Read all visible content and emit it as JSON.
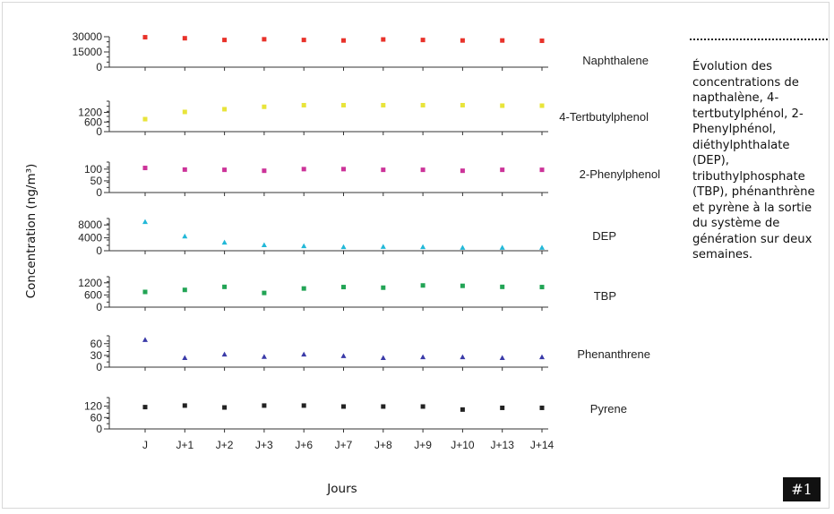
{
  "caption": "Évolution des concentrations de napthalène, 4-tertbutylphénol, 2-Phenylphénol, diéthylphthalate (DEP), tributhylphosphate (TBP), phénanthrène et pyrène à la sortie du système de génération sur deux semaines.",
  "badge": "#1",
  "chart_data": {
    "type": "scatter",
    "xlabel": "Jours",
    "ylabel": "Concentration (ng/m³)",
    "categories": [
      "J",
      "J+1",
      "J+2",
      "J+3",
      "J+6",
      "J+7",
      "J+8",
      "J+9",
      "J+10",
      "J+13",
      "J+14"
    ],
    "grid": false,
    "panels": [
      {
        "name": "Naphthalene",
        "color": "#e8322a",
        "marker": "square",
        "ylim": [
          0,
          30000
        ],
        "ticks": [
          "0",
          "15000",
          "30000"
        ],
        "values": [
          29500,
          28500,
          26800,
          27500,
          26800,
          26300,
          27300,
          26800,
          26300,
          26300,
          26000
        ]
      },
      {
        "name": "4-Tertbutylphenol",
        "color": "#e8e43a",
        "marker": "square",
        "ylim": [
          0,
          1900
        ],
        "ticks": [
          "0",
          "600",
          "1200"
        ],
        "values": [
          780,
          1230,
          1400,
          1550,
          1650,
          1650,
          1650,
          1650,
          1650,
          1620,
          1620
        ]
      },
      {
        "name": "2-Phenylphenol",
        "color": "#cc3399",
        "marker": "square",
        "ylim": [
          0,
          130
        ],
        "ticks": [
          "0",
          "50",
          "100"
        ],
        "values": [
          105,
          98,
          97,
          93,
          100,
          100,
          97,
          97,
          93,
          97,
          97
        ]
      },
      {
        "name": "DEP",
        "color": "#22b8d8",
        "marker": "triangle",
        "ylim": [
          0,
          10000
        ],
        "ticks": [
          "0",
          "4000",
          "8000"
        ],
        "values": [
          9000,
          4500,
          2600,
          1800,
          1500,
          1200,
          1300,
          1200,
          1000,
          1000,
          1000
        ]
      },
      {
        "name": "TBP",
        "color": "#22a455",
        "marker": "square",
        "ylim": [
          0,
          1500
        ],
        "ticks": [
          "0",
          "600",
          "1200"
        ],
        "values": [
          750,
          850,
          1000,
          700,
          920,
          990,
          960,
          1070,
          1050,
          1000,
          990
        ]
      },
      {
        "name": "Phenanthrene",
        "color": "#3a3aa8",
        "marker": "triangle",
        "ylim": [
          0,
          80
        ],
        "ticks": [
          "0",
          "30",
          "60"
        ],
        "values": [
          70,
          24,
          33,
          27,
          33,
          29,
          24,
          26,
          26,
          24,
          26
        ]
      },
      {
        "name": "Pyrene",
        "color": "#222222",
        "marker": "square",
        "ylim": [
          0,
          165
        ],
        "ticks": [
          "0",
          "60",
          "120"
        ],
        "values": [
          115,
          123,
          113,
          123,
          123,
          118,
          118,
          118,
          102,
          111,
          111
        ]
      }
    ]
  }
}
